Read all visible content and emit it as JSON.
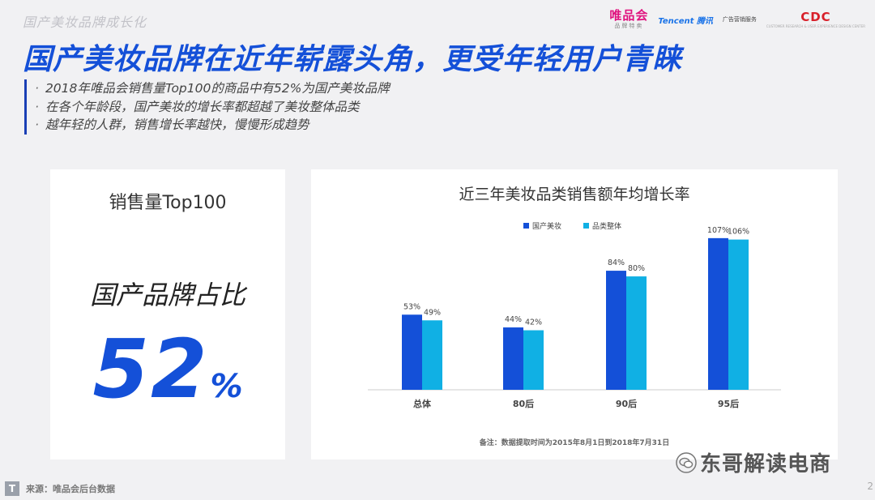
{
  "header": {
    "section_title": "国产美妆品牌成长化",
    "logos": {
      "vip_main": "唯品会",
      "vip_sub": "品牌特卖",
      "tencent": "Tencent 腾讯",
      "ad_school": "广告营销服务",
      "cdc_main": "CDC",
      "cdc_sub": "CUSTOMER RESEARCH & USER EXPERIENCE DESIGN CENTER"
    }
  },
  "headline": "国产美妆品牌在近年崭露头角，更受年轻用户青睐",
  "bullets": [
    "2018年唯品会销售量Top100的商品中有52%为国产美妆品牌",
    "在各个年龄段，国产美妆的增长率都超越了美妆整体品类",
    "越年轻的人群，销售增长率越快，慢慢形成趋势"
  ],
  "stat_card": {
    "title": "销售量Top100",
    "subtitle": "国产品牌占比",
    "value": "52",
    "unit": "%"
  },
  "chart_data": {
    "type": "bar",
    "title": "近三年美妆品类销售额年均增长率",
    "categories": [
      "总体",
      "80后",
      "90后",
      "95后"
    ],
    "series": [
      {
        "name": "国产美妆",
        "values": [
          53,
          44,
          84,
          107
        ],
        "labels": [
          "53%",
          "44%",
          "84%",
          "107%"
        ],
        "color": "#1450d8"
      },
      {
        "name": "品类整体",
        "values": [
          49,
          42,
          80,
          106
        ],
        "labels": [
          "49%",
          "42%",
          "80%",
          "106%"
        ],
        "color": "#10b0e4"
      }
    ],
    "ylim": [
      0,
      120
    ],
    "legend_position": "top",
    "grid": false,
    "note": "备注：数据提取时间为2015年8月1日到2018年7月31日"
  },
  "watermark": "东哥解读电商",
  "footer": {
    "source": "来源：唯品会后台数据",
    "page": "2"
  }
}
